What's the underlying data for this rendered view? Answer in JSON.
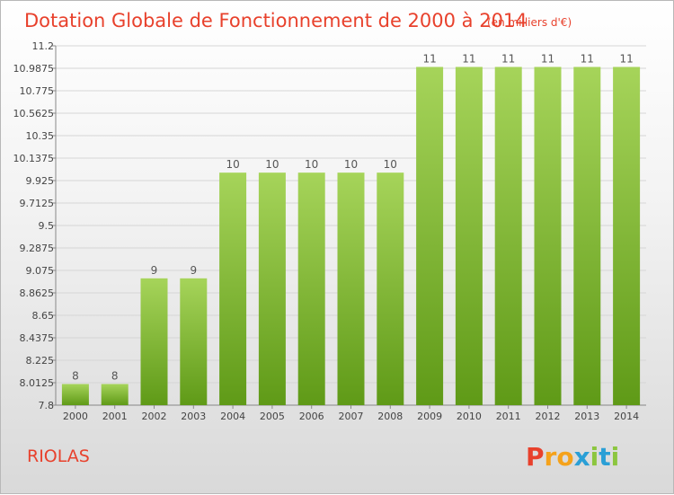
{
  "title": "Dotation Globale de Fonctionnement de 2000 à 2014",
  "unit": "(en milliers d'€)",
  "commune": "RIOLAS",
  "brand": {
    "letters": [
      "P",
      "r",
      "o",
      "x",
      "i",
      "t",
      "i"
    ],
    "colors": [
      "#e8412c",
      "#f5a21b",
      "#f5a21b",
      "#2a9fd6",
      "#8cc63f",
      "#2a9fd6",
      "#8cc63f"
    ]
  },
  "colors": {
    "bar_top": "#a6d45a",
    "bar_bottom": "#5f9a17",
    "title": "#e8412c"
  },
  "chart_data": {
    "type": "bar",
    "title": "Dotation Globale de Fonctionnement de 2000 à 2014",
    "subtitle": "(en milliers d'€)",
    "categories": [
      "2000",
      "2001",
      "2002",
      "2003",
      "2004",
      "2005",
      "2006",
      "2007",
      "2008",
      "2009",
      "2010",
      "2011",
      "2012",
      "2013",
      "2014"
    ],
    "values": [
      8,
      8,
      9,
      9,
      10,
      10,
      10,
      10,
      10,
      11,
      11,
      11,
      11,
      11,
      11
    ],
    "data_labels": [
      "8",
      "8",
      "9",
      "9",
      "10",
      "10",
      "10",
      "10",
      "10",
      "11",
      "11",
      "11",
      "11",
      "11",
      "11"
    ],
    "yticks": [
      "7.8",
      "8.0125",
      "8.225",
      "8.4375",
      "8.65",
      "8.8625",
      "9.075",
      "9.2875",
      "9.5",
      "9.7125",
      "9.925",
      "10.1375",
      "10.35",
      "10.5625",
      "10.775",
      "10.9875",
      "11.2"
    ],
    "ylim": [
      7.8,
      11.2
    ],
    "grid": true,
    "legend": "none"
  }
}
